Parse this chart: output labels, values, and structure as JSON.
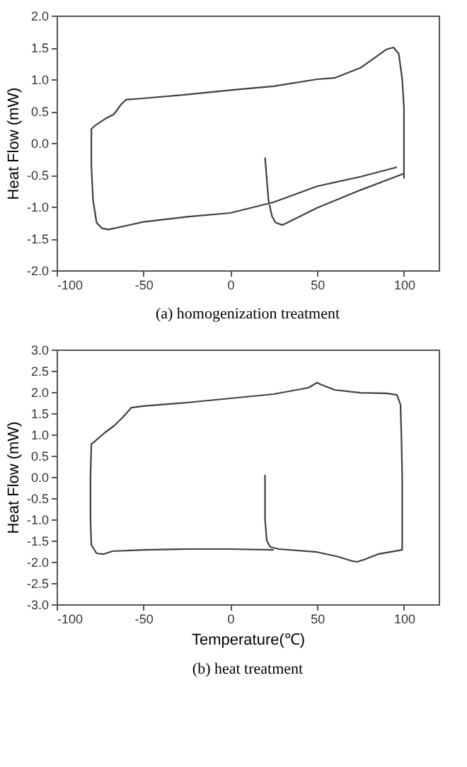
{
  "chart_data": [
    {
      "type": "line",
      "ylabel": "Heat Flow (mW)",
      "annotations": [
        "(a)  homogenization  treatment"
      ],
      "xlim": [
        -100,
        120
      ],
      "xticks": [
        -100,
        -50,
        0,
        50,
        100
      ],
      "ylim": [
        -2,
        2
      ],
      "yticks": [
        {
          "value": -2,
          "label": "-2.0"
        },
        {
          "value": -1.5,
          "label": "-1.5"
        },
        {
          "value": -1,
          "label": "-1.0"
        },
        {
          "value": -0.5,
          "label": "-0.5"
        },
        {
          "value": 0,
          "label": "0.0"
        },
        {
          "value": 0.5,
          "label": "0.5"
        },
        {
          "value": 1,
          "label": "1.0"
        },
        {
          "value": 1.5,
          "label": "1.5"
        },
        {
          "value": 2,
          "label": "2.0"
        }
      ],
      "grid": false,
      "series": [
        {
          "color": "#404040",
          "x": [
            20,
            22,
            24,
            26,
            30,
            33,
            50,
            75,
            100,
            100,
            100,
            99,
            97,
            94,
            90,
            75,
            60,
            50,
            25,
            0,
            -25,
            -50,
            -60,
            -63,
            -67,
            -72,
            -78,
            -80,
            -80,
            -79,
            -77,
            -74,
            -70,
            -60,
            -50,
            -25,
            0,
            25,
            50,
            75,
            96
          ],
          "values": [
            -0.23,
            -0.9,
            -1.15,
            -1.25,
            -1.29,
            -1.25,
            -1.02,
            -0.74,
            -0.48,
            -0.55,
            0.55,
            1.0,
            1.4,
            1.5,
            1.47,
            1.18,
            1.02,
            1.0,
            0.89,
            0.83,
            0.76,
            0.7,
            0.68,
            0.6,
            0.45,
            0.38,
            0.27,
            0.22,
            -0.35,
            -0.9,
            -1.25,
            -1.34,
            -1.36,
            -1.3,
            -1.24,
            -1.16,
            -1.1,
            -0.93,
            -0.68,
            -0.53,
            -0.38
          ]
        }
      ]
    },
    {
      "type": "line",
      "xlabel": "Temperature(℃)",
      "ylabel": "Heat Flow (mW)",
      "annotations": [
        "(b)  heat  treatment"
      ],
      "xlim": [
        -100,
        120
      ],
      "xticks": [
        -100,
        -50,
        0,
        50,
        100
      ],
      "ylim": [
        -3,
        3
      ],
      "yticks": [
        {
          "value": -3,
          "label": "-3.0"
        },
        {
          "value": -2.5,
          "label": "-2.5"
        },
        {
          "value": -2,
          "label": "-2.0"
        },
        {
          "value": -1.5,
          "label": "-1.5"
        },
        {
          "value": -1,
          "label": "-1.0"
        },
        {
          "value": -0.5,
          "label": "-0.5"
        },
        {
          "value": 0,
          "label": "0.0"
        },
        {
          "value": 0.5,
          "label": "0.5"
        },
        {
          "value": 1,
          "label": "1.0"
        },
        {
          "value": 1.5,
          "label": "1.5"
        },
        {
          "value": 2,
          "label": "2.0"
        },
        {
          "value": 2.5,
          "label": "2.5"
        },
        {
          "value": 3,
          "label": "3.0"
        }
      ],
      "grid": false,
      "series": [
        {
          "color": "#404040",
          "x": [
            20,
            20,
            21,
            23,
            28,
            50,
            62,
            70,
            73,
            77,
            85,
            99,
            99,
            99,
            98.5,
            98,
            96,
            90,
            75,
            60,
            52,
            50,
            45,
            25,
            0,
            -25,
            -50,
            -57,
            -62,
            -67,
            -72,
            -80,
            -80.5,
            -80.5,
            -80,
            -77,
            -73,
            -68,
            -50,
            -25,
            0,
            25
          ],
          "values": [
            0.05,
            -1.0,
            -1.5,
            -1.65,
            -1.7,
            -1.77,
            -1.88,
            -1.98,
            -2.0,
            -1.95,
            -1.82,
            -1.72,
            -1.2,
            0,
            1.0,
            1.7,
            1.93,
            1.97,
            1.98,
            2.05,
            2.18,
            2.22,
            2.1,
            1.95,
            1.85,
            1.75,
            1.67,
            1.63,
            1.4,
            1.2,
            1.05,
            0.77,
            0,
            -1.0,
            -1.6,
            -1.8,
            -1.82,
            -1.75,
            -1.72,
            -1.7,
            -1.7,
            -1.72
          ]
        }
      ]
    }
  ]
}
